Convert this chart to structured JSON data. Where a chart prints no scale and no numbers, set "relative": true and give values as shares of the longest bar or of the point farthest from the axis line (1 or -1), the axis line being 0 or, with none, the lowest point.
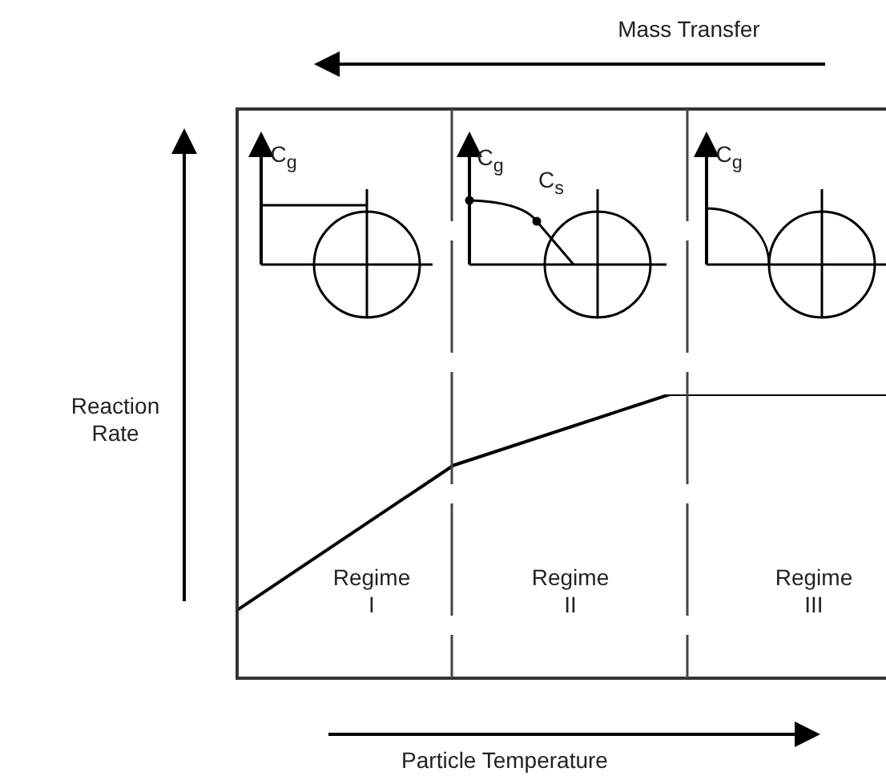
{
  "chart_data": {
    "type": "line",
    "relative": true,
    "categories": [
      null,
      null,
      null,
      null
    ],
    "series": [
      {
        "color": "#000000",
        "values": [
          0.24,
          0.75,
          1,
          1
        ]
      }
    ],
    "xlabel": "Particle Temperature",
    "ylabel": "Reaction Rate",
    "annotations": [
      "Mass Transfer",
      "Regime I",
      "Regime II",
      "Regime III",
      "C$_{g}$",
      "C$_{g}$",
      "C$_{s}$",
      "C$_{g}$"
    ],
    "marker": "none",
    "line_style": "solid",
    "grid": false,
    "legend": false
  }
}
